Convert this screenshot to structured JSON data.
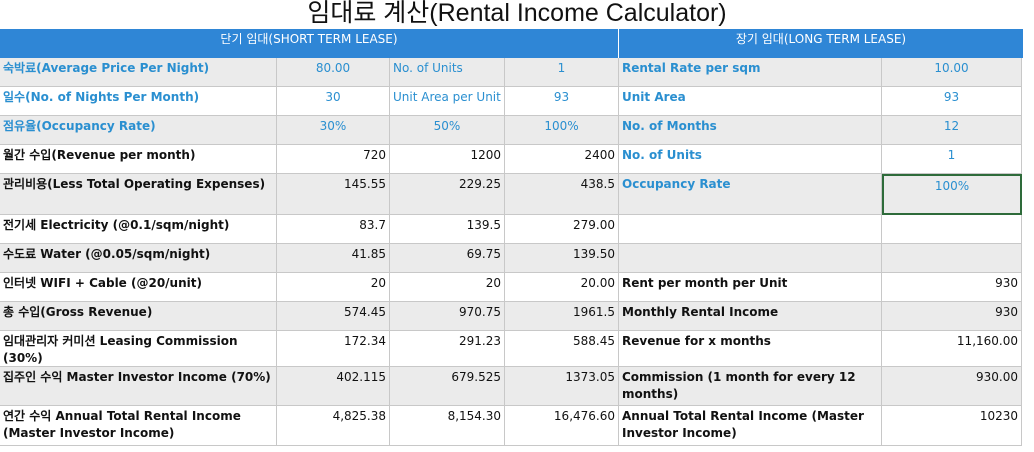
{
  "title": "임대료 계산(Rental Income Calculator)",
  "header": [
    "단기 임대(SHORT TERM LEASE)",
    "장기 임대(LONG TERM LEASE)"
  ],
  "rows": [
    [
      "숙박료(Average Price Per Night)",
      "80.00",
      "No. of Units",
      "1",
      "Rental Rate per sqm",
      "10.00"
    ],
    [
      "일수(No. of Nights Per Month)",
      "30",
      "Unit Area per Unit",
      "93",
      "Unit Area",
      "93"
    ],
    [
      "점유율(Occupancy Rate)",
      "30%",
      "50%",
      "100%",
      "No. of Months",
      "12"
    ],
    [
      "월간 수입(Revenue per month)",
      "720",
      "1200",
      "2400",
      "No. of Units",
      "1"
    ],
    [
      "관리비용(Less Total Operating Expenses)",
      "145.55",
      "229.25",
      "438.5",
      "Occupancy Rate",
      "100%"
    ],
    [
      "전기세 Electricity (@0.1/sqm/night)",
      "83.7",
      "139.5",
      "279.00",
      null,
      null
    ],
    [
      "수도료 Water (@0.05/sqm/night)",
      "41.85",
      "69.75",
      "139.50",
      null,
      null
    ],
    [
      "인터넷 WIFI + Cable (@20/unit)",
      "20",
      "20",
      "20.00",
      "Rent per month per Unit",
      "930"
    ],
    [
      "총 수입(Gross Revenue)",
      "574.45",
      "970.75",
      "1961.5",
      "Monthly Rental Income",
      "930"
    ],
    [
      "임대관리자 커미션 Leasing Commission (30%)",
      "172.34",
      "291.23",
      "588.45",
      "Revenue for x months",
      "11,160.00"
    ],
    [
      "집주인 수익 Master Investor Income (70%)",
      "402.115",
      "679.525",
      "1373.05",
      "Commission (1 month for every 12 months)",
      "930.00"
    ],
    [
      "연간 수익 Annual Total Rental Income (Master Investor Income)",
      "4,825.38",
      "8,154.30",
      "16,476.60",
      "Annual Total Rental Income (Master Investor Income)",
      "10230"
    ]
  ]
}
